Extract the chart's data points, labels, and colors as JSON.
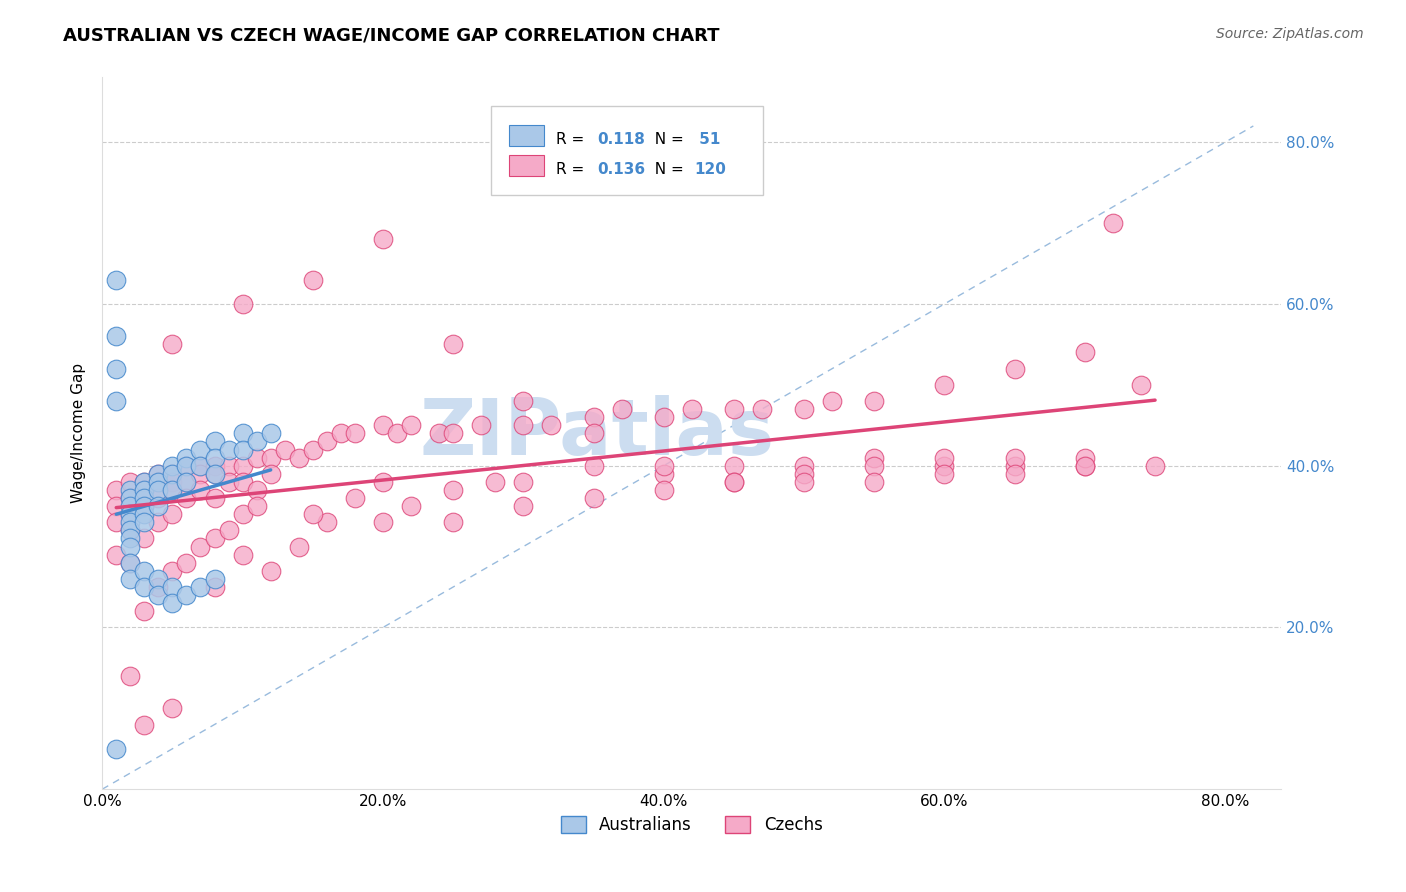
{
  "title": "AUSTRALIAN VS CZECH WAGE/INCOME GAP CORRELATION CHART",
  "source": "Source: ZipAtlas.com",
  "ylabel": "Wage/Income Gap",
  "xlim": [
    0.0,
    0.84
  ],
  "ylim": [
    0.0,
    0.88
  ],
  "ytick_vals": [
    0.2,
    0.4,
    0.6,
    0.8
  ],
  "xtick_vals": [
    0.0,
    0.2,
    0.4,
    0.6,
    0.8
  ],
  "color_aus": "#aac8e8",
  "color_czech": "#f5aac8",
  "color_aus_line": "#4488cc",
  "color_czech_line": "#dd4477",
  "color_diag_line": "#99bbdd",
  "watermark_text": "ZIPatlas",
  "watermark_color": "#ccddf0",
  "aus_x": [
    0.01,
    0.01,
    0.01,
    0.01,
    0.02,
    0.02,
    0.02,
    0.02,
    0.02,
    0.02,
    0.02,
    0.02,
    0.03,
    0.03,
    0.03,
    0.03,
    0.03,
    0.03,
    0.04,
    0.04,
    0.04,
    0.04,
    0.05,
    0.05,
    0.05,
    0.06,
    0.06,
    0.06,
    0.07,
    0.07,
    0.08,
    0.08,
    0.08,
    0.09,
    0.1,
    0.1,
    0.11,
    0.12,
    0.02,
    0.02,
    0.03,
    0.03,
    0.04,
    0.04,
    0.05,
    0.05,
    0.06,
    0.07,
    0.08,
    0.01
  ],
  "aus_y": [
    0.63,
    0.56,
    0.52,
    0.48,
    0.37,
    0.36,
    0.35,
    0.34,
    0.33,
    0.32,
    0.31,
    0.3,
    0.38,
    0.37,
    0.36,
    0.35,
    0.34,
    0.33,
    0.39,
    0.38,
    0.37,
    0.35,
    0.4,
    0.39,
    0.37,
    0.41,
    0.4,
    0.38,
    0.42,
    0.4,
    0.43,
    0.41,
    0.39,
    0.42,
    0.44,
    0.42,
    0.43,
    0.44,
    0.28,
    0.26,
    0.27,
    0.25,
    0.26,
    0.24,
    0.25,
    0.23,
    0.24,
    0.25,
    0.26,
    0.05
  ],
  "czech_x": [
    0.01,
    0.01,
    0.01,
    0.01,
    0.02,
    0.02,
    0.02,
    0.02,
    0.02,
    0.03,
    0.03,
    0.03,
    0.03,
    0.04,
    0.04,
    0.04,
    0.04,
    0.05,
    0.05,
    0.05,
    0.05,
    0.06,
    0.06,
    0.06,
    0.07,
    0.07,
    0.07,
    0.08,
    0.08,
    0.08,
    0.09,
    0.09,
    0.1,
    0.1,
    0.11,
    0.11,
    0.12,
    0.12,
    0.13,
    0.14,
    0.15,
    0.16,
    0.17,
    0.18,
    0.2,
    0.21,
    0.22,
    0.24,
    0.25,
    0.27,
    0.3,
    0.32,
    0.35,
    0.37,
    0.4,
    0.42,
    0.45,
    0.47,
    0.5,
    0.52,
    0.55,
    0.6,
    0.65,
    0.7,
    0.02,
    0.03,
    0.04,
    0.05,
    0.06,
    0.07,
    0.08,
    0.09,
    0.1,
    0.11,
    0.12,
    0.14,
    0.16,
    0.18,
    0.2,
    0.22,
    0.25,
    0.28,
    0.3,
    0.35,
    0.4,
    0.45,
    0.5,
    0.55,
    0.6,
    0.65,
    0.7,
    0.03,
    0.05,
    0.08,
    0.1,
    0.15,
    0.2,
    0.25,
    0.3,
    0.35,
    0.4,
    0.45,
    0.5,
    0.55,
    0.6,
    0.65,
    0.7,
    0.72,
    0.74,
    0.05,
    0.1,
    0.15,
    0.2,
    0.25,
    0.3,
    0.35,
    0.4,
    0.45,
    0.5,
    0.55,
    0.6,
    0.65,
    0.7,
    0.75
  ],
  "czech_y": [
    0.37,
    0.35,
    0.33,
    0.29,
    0.38,
    0.36,
    0.34,
    0.32,
    0.28,
    0.38,
    0.37,
    0.35,
    0.31,
    0.39,
    0.38,
    0.36,
    0.33,
    0.39,
    0.38,
    0.37,
    0.34,
    0.4,
    0.38,
    0.36,
    0.4,
    0.39,
    0.37,
    0.4,
    0.39,
    0.36,
    0.4,
    0.38,
    0.4,
    0.38,
    0.41,
    0.37,
    0.41,
    0.39,
    0.42,
    0.41,
    0.42,
    0.43,
    0.44,
    0.44,
    0.45,
    0.44,
    0.45,
    0.44,
    0.44,
    0.45,
    0.45,
    0.45,
    0.46,
    0.47,
    0.46,
    0.47,
    0.47,
    0.47,
    0.47,
    0.48,
    0.48,
    0.5,
    0.52,
    0.54,
    0.14,
    0.22,
    0.25,
    0.27,
    0.28,
    0.3,
    0.31,
    0.32,
    0.34,
    0.35,
    0.27,
    0.3,
    0.33,
    0.36,
    0.38,
    0.35,
    0.37,
    0.38,
    0.38,
    0.4,
    0.39,
    0.4,
    0.4,
    0.41,
    0.4,
    0.4,
    0.4,
    0.08,
    0.1,
    0.25,
    0.29,
    0.34,
    0.33,
    0.33,
    0.35,
    0.36,
    0.37,
    0.38,
    0.39,
    0.4,
    0.41,
    0.41,
    0.41,
    0.7,
    0.5,
    0.55,
    0.6,
    0.63,
    0.68,
    0.55,
    0.48,
    0.44,
    0.4,
    0.38,
    0.38,
    0.38,
    0.39,
    0.39,
    0.4,
    0.4
  ]
}
